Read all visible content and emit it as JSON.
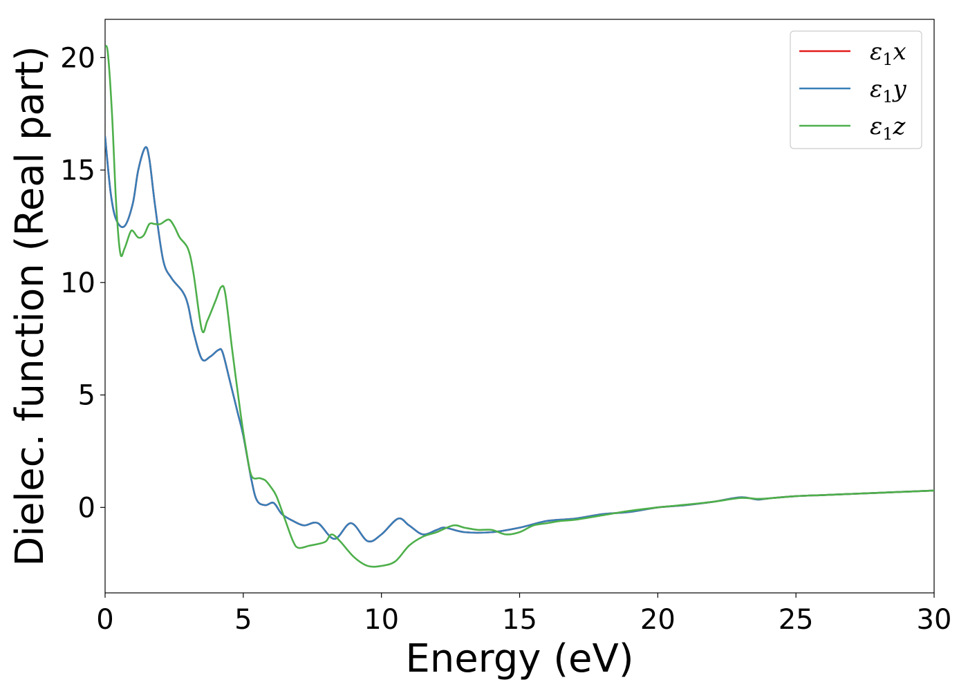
{
  "chart_data": {
    "type": "line",
    "title": "",
    "xlabel": "Energy (eV)",
    "ylabel": "Dielec. function (Real part)",
    "xlim": [
      0,
      30
    ],
    "ylim": [
      -3.8,
      21.7
    ],
    "xticks": [
      0,
      5,
      10,
      15,
      20,
      25,
      30
    ],
    "yticks": [
      0,
      5,
      10,
      15,
      20
    ],
    "xtick_labels": [
      "0",
      "5",
      "10",
      "15",
      "20",
      "25",
      "30"
    ],
    "ytick_labels": [
      "0",
      "5",
      "10",
      "15",
      "20"
    ],
    "grid": false,
    "legend_position": "top-right",
    "series": [
      {
        "name": "ε₁x",
        "legend_base": "ε",
        "legend_sub": "1",
        "legend_var": "x",
        "color": "#e41a1c",
        "x": [
          0,
          0.2,
          0.4,
          0.7,
          1.0,
          1.2,
          1.45,
          1.6,
          1.8,
          2.1,
          2.4,
          2.8,
          3.0,
          3.2,
          3.5,
          3.8,
          4.1,
          4.25,
          4.5,
          4.8,
          5.0,
          5.3,
          5.5,
          5.8,
          6.1,
          6.4,
          6.8,
          7.2,
          7.7,
          8.3,
          8.9,
          9.5,
          10.0,
          10.6,
          11.0,
          11.5,
          12.0,
          12.3,
          13.0,
          14.0,
          15.0,
          16.0,
          17.0,
          18.0,
          19.0,
          20.0,
          21.0,
          22.0,
          23.0,
          23.6,
          24.0,
          25.0,
          26.0,
          27.0,
          28.0,
          29.0,
          30.0
        ],
        "y": [
          16.5,
          14.0,
          12.8,
          12.5,
          13.5,
          15.0,
          16.0,
          15.5,
          13.5,
          11.0,
          10.2,
          9.6,
          9.0,
          7.8,
          6.6,
          6.7,
          7.0,
          6.9,
          5.7,
          4.2,
          3.2,
          1.2,
          0.3,
          0.1,
          0.2,
          -0.3,
          -0.6,
          -0.8,
          -0.7,
          -1.4,
          -0.7,
          -1.5,
          -1.2,
          -0.5,
          -0.8,
          -1.2,
          -1.0,
          -0.9,
          -1.1,
          -1.1,
          -0.9,
          -0.6,
          -0.5,
          -0.3,
          -0.2,
          0.0,
          0.1,
          0.25,
          0.45,
          0.35,
          0.4,
          0.5,
          0.55,
          0.6,
          0.65,
          0.7,
          0.75
        ]
      },
      {
        "name": "ε₁y",
        "legend_base": "ε",
        "legend_sub": "1",
        "legend_var": "y",
        "color": "#377eb8",
        "x": [
          0,
          0.2,
          0.4,
          0.7,
          1.0,
          1.2,
          1.45,
          1.6,
          1.8,
          2.1,
          2.4,
          2.8,
          3.0,
          3.2,
          3.5,
          3.8,
          4.1,
          4.25,
          4.5,
          4.8,
          5.0,
          5.3,
          5.5,
          5.8,
          6.1,
          6.4,
          6.8,
          7.2,
          7.7,
          8.3,
          8.9,
          9.5,
          10.0,
          10.6,
          11.0,
          11.5,
          12.0,
          12.3,
          13.0,
          14.0,
          15.0,
          16.0,
          17.0,
          18.0,
          19.0,
          20.0,
          21.0,
          22.0,
          23.0,
          23.6,
          24.0,
          25.0,
          26.0,
          27.0,
          28.0,
          29.0,
          30.0
        ],
        "y": [
          16.5,
          14.0,
          12.8,
          12.5,
          13.5,
          15.0,
          16.0,
          15.5,
          13.5,
          11.0,
          10.2,
          9.6,
          9.0,
          7.8,
          6.6,
          6.7,
          7.0,
          6.9,
          5.7,
          4.2,
          3.2,
          1.2,
          0.3,
          0.1,
          0.2,
          -0.3,
          -0.6,
          -0.8,
          -0.7,
          -1.4,
          -0.7,
          -1.5,
          -1.2,
          -0.5,
          -0.8,
          -1.2,
          -1.0,
          -0.9,
          -1.1,
          -1.1,
          -0.9,
          -0.6,
          -0.5,
          -0.3,
          -0.2,
          0.0,
          0.1,
          0.25,
          0.45,
          0.35,
          0.4,
          0.5,
          0.55,
          0.6,
          0.65,
          0.7,
          0.75
        ]
      },
      {
        "name": "ε₁z",
        "legend_base": "ε",
        "legend_sub": "1",
        "legend_var": "z",
        "color": "#4daf4a",
        "x": [
          0,
          0.1,
          0.25,
          0.4,
          0.55,
          0.7,
          0.9,
          1.0,
          1.2,
          1.4,
          1.6,
          1.8,
          2.0,
          2.3,
          2.5,
          2.7,
          3.0,
          3.2,
          3.5,
          3.7,
          4.0,
          4.2,
          4.35,
          4.6,
          4.9,
          5.1,
          5.3,
          5.6,
          5.8,
          6.0,
          6.2,
          6.5,
          6.8,
          7.0,
          7.4,
          7.8,
          8.0,
          8.2,
          8.5,
          9.0,
          9.5,
          10.0,
          10.5,
          11.0,
          11.5,
          12.0,
          12.6,
          13.0,
          13.5,
          14.0,
          14.5,
          15.0,
          15.5,
          16.0,
          16.5,
          17.0,
          18.0,
          19.0,
          20.0,
          21.0,
          22.0,
          23.0,
          23.6,
          24.0,
          25.0,
          26.0,
          27.0,
          28.0,
          29.0,
          30.0
        ],
        "y": [
          20.5,
          20.2,
          17.5,
          13.5,
          11.3,
          11.5,
          12.2,
          12.3,
          12.0,
          12.1,
          12.6,
          12.6,
          12.6,
          12.8,
          12.5,
          12.0,
          11.5,
          10.4,
          7.9,
          8.3,
          9.2,
          9.8,
          9.5,
          7.0,
          4.2,
          2.6,
          1.4,
          1.3,
          1.2,
          0.9,
          0.5,
          -0.5,
          -1.5,
          -1.8,
          -1.7,
          -1.6,
          -1.5,
          -1.2,
          -1.5,
          -2.2,
          -2.6,
          -2.6,
          -2.4,
          -1.7,
          -1.3,
          -1.1,
          -0.8,
          -0.9,
          -1.0,
          -1.0,
          -1.2,
          -1.1,
          -0.8,
          -0.7,
          -0.6,
          -0.55,
          -0.35,
          -0.15,
          0.0,
          0.12,
          0.25,
          0.42,
          0.38,
          0.4,
          0.5,
          0.55,
          0.6,
          0.65,
          0.7,
          0.75
        ]
      }
    ]
  }
}
